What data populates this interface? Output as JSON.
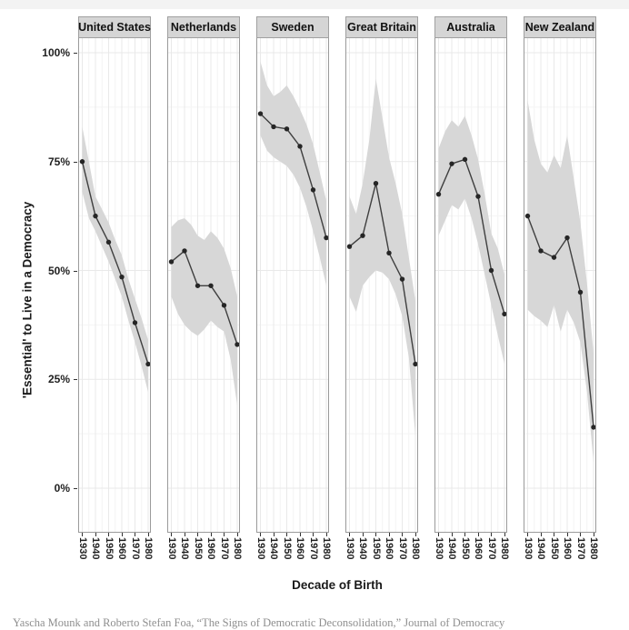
{
  "caption": "Yascha Mounk and Roberto Stefan Foa, “The Signs of Democratic Deconsolidation,” Journal of Democracy",
  "chart_data": {
    "type": "line",
    "faceted": true,
    "title": "",
    "xlabel": "Decade of Birth",
    "ylabel": "'Essential' to Live in a Democracy",
    "categories": [
      "1930",
      "1940",
      "1950",
      "1960",
      "1970",
      "1980"
    ],
    "y_ticks": [
      {
        "label": "100%",
        "value": 100
      },
      {
        "label": "75%",
        "value": 75
      },
      {
        "label": "50%",
        "value": 50
      },
      {
        "label": "25%",
        "value": 25
      },
      {
        "label": "0%",
        "value": 0
      }
    ],
    "ylim": [
      0,
      100
    ],
    "grid": "on",
    "legend_position": "none",
    "band_note": "shaded ribbons are confidence bands sampled at half-decade steps 1930-1980",
    "band_x_units": [
      0,
      0.5,
      1,
      1.5,
      2,
      2.5,
      3,
      3.5,
      4,
      4.5,
      5
    ],
    "series": [
      {
        "name": "United States",
        "values": [
          75,
          62.5,
          56.5,
          48.5,
          38,
          28.5
        ],
        "band_upper": [
          83,
          75,
          67,
          64,
          61,
          57,
          53.5,
          48,
          43.5,
          39,
          34
        ],
        "band_lower": [
          68,
          62,
          59,
          55.5,
          52,
          48,
          44,
          38.5,
          33.5,
          28,
          22
        ]
      },
      {
        "name": "Netherlands",
        "values": [
          52,
          54.5,
          46.5,
          46.5,
          42,
          33
        ],
        "band_upper": [
          60,
          61.5,
          62,
          60.5,
          58,
          57,
          59,
          57.5,
          55,
          50.5,
          44
        ],
        "band_lower": [
          44,
          40,
          37.5,
          36,
          35,
          36.5,
          38.5,
          37,
          36,
          29.5,
          19
        ]
      },
      {
        "name": "Sweden",
        "values": [
          86,
          83,
          82.5,
          78.5,
          68.5,
          57.5
        ],
        "band_upper": [
          98,
          92.5,
          90,
          91,
          92.5,
          90,
          87,
          83.5,
          79,
          72.5,
          66
        ],
        "band_lower": [
          81,
          77.5,
          76,
          75,
          74,
          72,
          69,
          64.5,
          59,
          53,
          46.5
        ]
      },
      {
        "name": "Great Britain",
        "values": [
          55.5,
          58,
          70,
          54,
          48,
          28.5
        ],
        "band_upper": [
          67,
          63,
          70,
          80,
          94,
          85,
          76,
          70,
          63,
          53,
          43
        ],
        "band_lower": [
          44,
          40.5,
          46.5,
          48.5,
          50,
          49.5,
          48,
          44.5,
          39.5,
          30,
          12
        ]
      },
      {
        "name": "Australia",
        "values": [
          67.5,
          74.5,
          75.5,
          67,
          50,
          40
        ],
        "band_upper": [
          78,
          82,
          84.5,
          83,
          85.5,
          81,
          75.5,
          67.5,
          58.5,
          55,
          49
        ],
        "band_lower": [
          58,
          61.5,
          65,
          64,
          66.5,
          62,
          56,
          49,
          42,
          35,
          28.5
        ]
      },
      {
        "name": "New Zealand",
        "values": [
          62.5,
          54.5,
          53,
          57.5,
          45,
          14
        ],
        "band_upper": [
          89,
          80,
          74.5,
          72.5,
          76.5,
          73.5,
          81,
          71,
          61,
          47,
          31
        ],
        "band_lower": [
          41,
          39.5,
          38.5,
          37,
          42,
          36,
          41,
          38,
          33.5,
          22,
          6
        ]
      }
    ],
    "colors": {
      "line": "#3f3f3f",
      "point": "#262626",
      "band": "#d7d7d7",
      "header_bg": "#d5d5d5",
      "header_border": "#a0a0a0",
      "panel_border": "#9a9a9a",
      "grid_major": "#e9e9e9",
      "grid_minor": "#f4f4f4",
      "tick": "#333333"
    }
  }
}
